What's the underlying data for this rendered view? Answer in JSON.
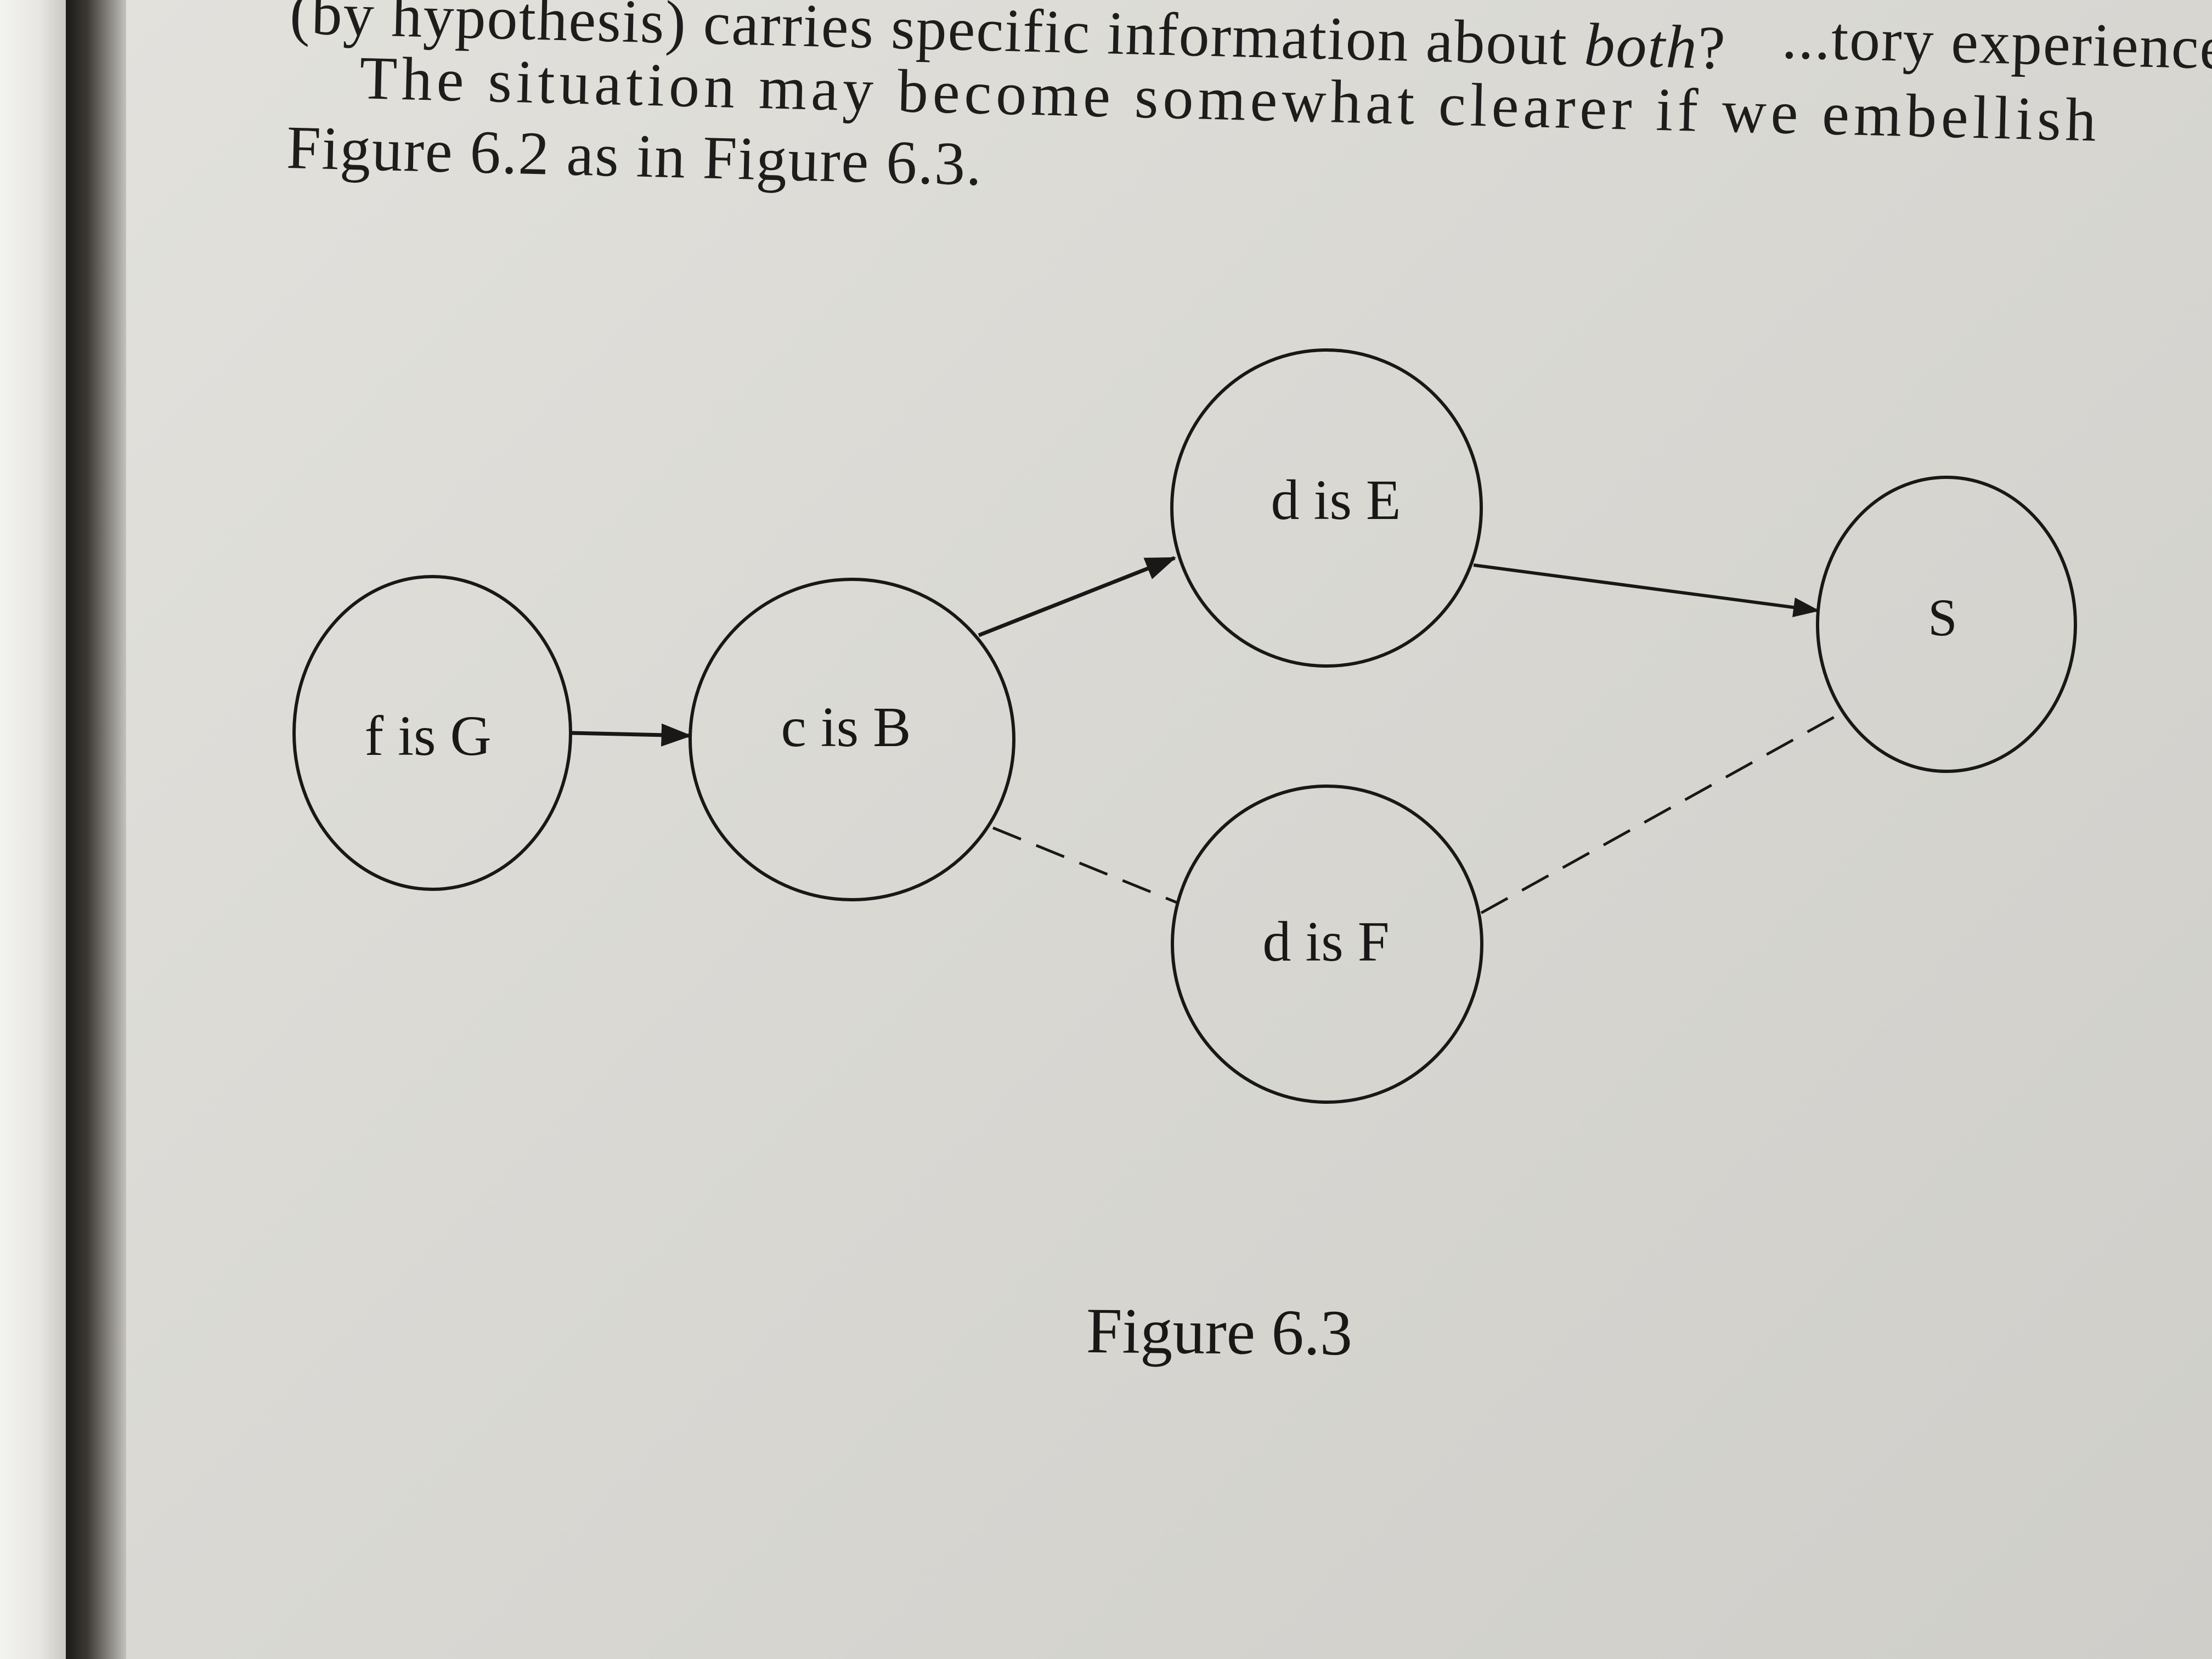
{
  "text": {
    "line1_left": "(by hypothesis) carries specific information about",
    "line1_emphasis": "both",
    "line1_end": "?",
    "line1_right": "...tory experience",
    "line2": "The situation may become somewhat clearer if we embellish",
    "line3": "Figure 6.2 as in Figure 6.3."
  },
  "diagram": {
    "nodes": [
      {
        "id": "fG",
        "label": "f is G"
      },
      {
        "id": "cB",
        "label": "c is B"
      },
      {
        "id": "dE",
        "label": "d is E"
      },
      {
        "id": "dF",
        "label": "d is F"
      },
      {
        "id": "S",
        "label": "S"
      }
    ],
    "edges": [
      {
        "from": "fG",
        "to": "cB",
        "style": "solid-arrow"
      },
      {
        "from": "cB",
        "to": "dE",
        "style": "solid-arrow"
      },
      {
        "from": "dE",
        "to": "S",
        "style": "solid-arrow"
      },
      {
        "from": "cB",
        "to": "dF",
        "style": "dashed"
      },
      {
        "from": "dF",
        "to": "S",
        "style": "dashed"
      }
    ]
  },
  "caption": "Figure 6.3"
}
